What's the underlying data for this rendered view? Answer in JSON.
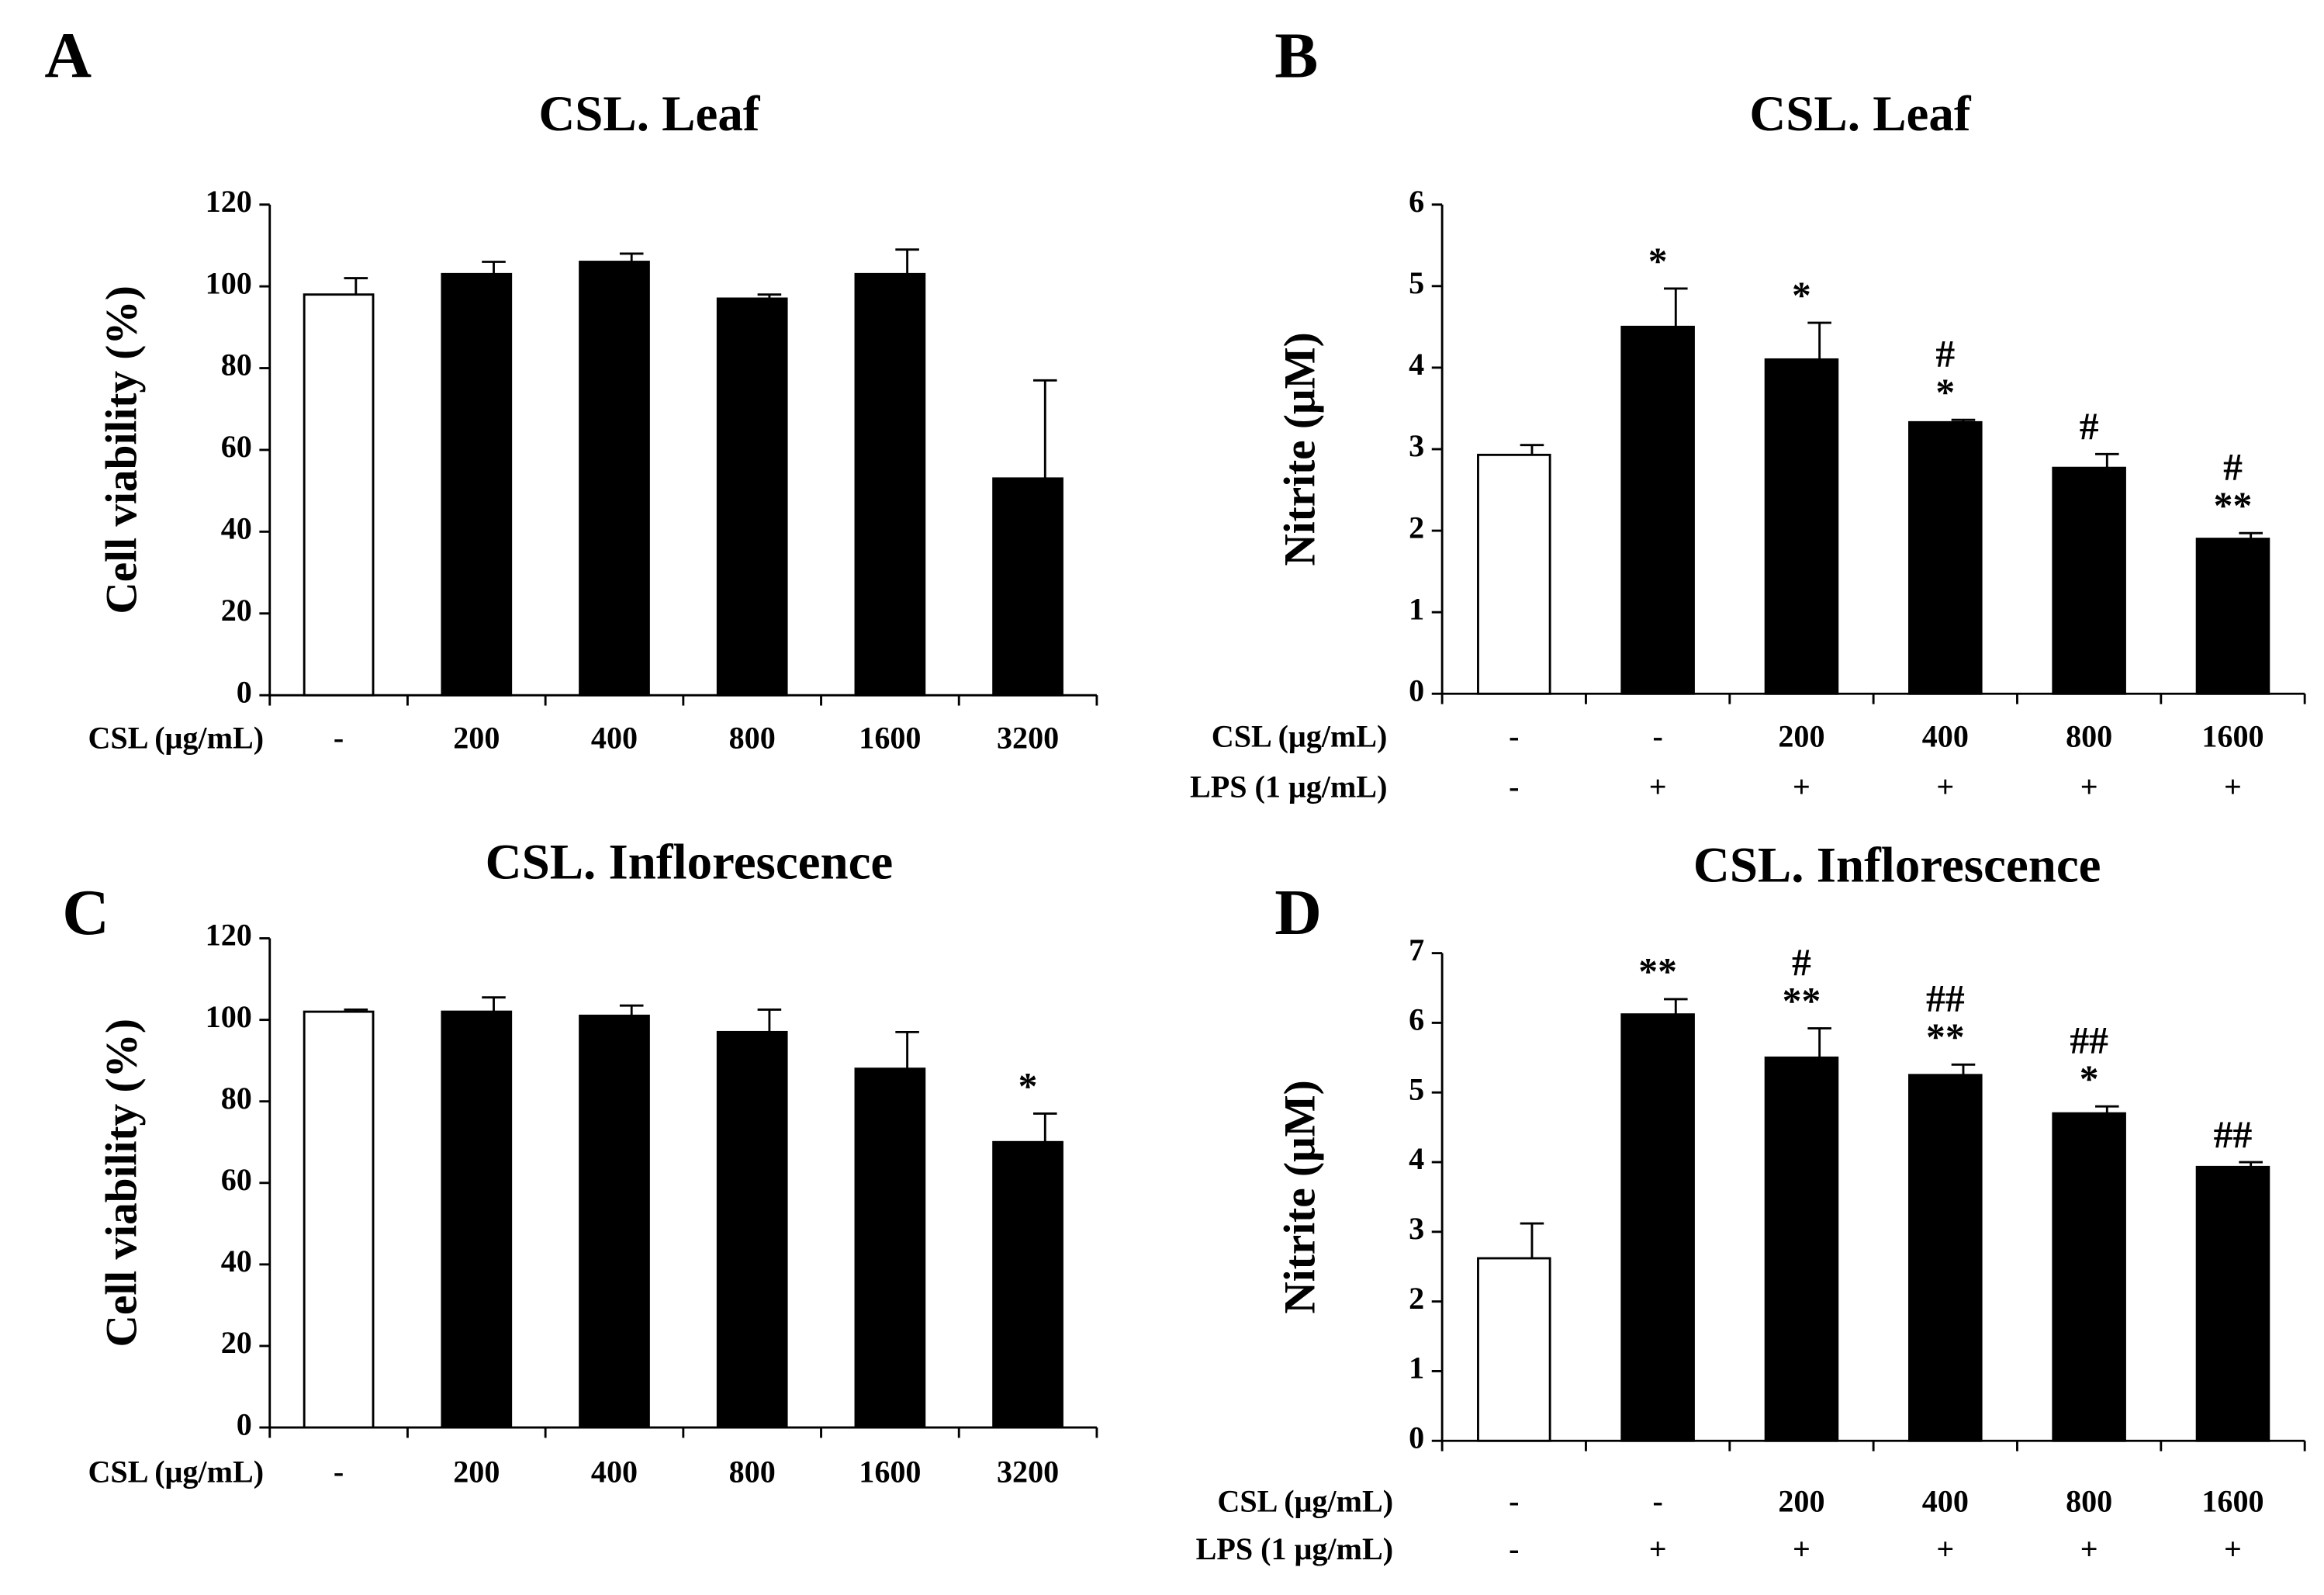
{
  "chart_data": [
    {
      "type": "bar",
      "panel": "A",
      "title": "CSL. Leaf",
      "ylabel": "Cell viability (%)",
      "ylim": [
        0,
        120
      ],
      "yticks": [
        0,
        20,
        40,
        60,
        80,
        100,
        120
      ],
      "rows": [
        {
          "label": "CSL (μg/mL)",
          "categories": [
            "-",
            "200",
            "400",
            "800",
            "1600",
            "3200"
          ]
        }
      ],
      "values": [
        98,
        103,
        106,
        97,
        103,
        53
      ],
      "errors": [
        4,
        3,
        2,
        1,
        6,
        24
      ],
      "colors": [
        "#ffffff",
        "#000000",
        "#000000",
        "#000000",
        "#000000",
        "#000000"
      ],
      "annotations": [
        null,
        null,
        null,
        null,
        null,
        null
      ]
    },
    {
      "type": "bar",
      "panel": "B",
      "title": "CSL. Leaf",
      "ylabel": "Nitrite (μM)",
      "ylim": [
        0,
        6
      ],
      "yticks": [
        0,
        1,
        2,
        3,
        4,
        5,
        6
      ],
      "rows": [
        {
          "label": "CSL (μg/mL)",
          "categories": [
            "-",
            "-",
            "200",
            "400",
            "800",
            "1600"
          ]
        },
        {
          "label": "LPS (1 μg/mL)",
          "categories": [
            "-",
            "+",
            "+",
            "+",
            "+",
            "+"
          ]
        }
      ],
      "values": [
        2.93,
        4.5,
        4.1,
        3.33,
        2.77,
        1.9
      ],
      "errors": [
        0.12,
        0.47,
        0.45,
        0.03,
        0.17,
        0.07
      ],
      "colors": [
        "#ffffff",
        "#000000",
        "#000000",
        "#000000",
        "#000000",
        "#000000"
      ],
      "annotations": [
        null,
        [
          "*"
        ],
        [
          "*"
        ],
        [
          "#",
          "*"
        ],
        [
          "#"
        ],
        [
          "#",
          "**"
        ]
      ]
    },
    {
      "type": "bar",
      "panel": "C",
      "title": "CSL. Inflorescence",
      "ylabel": "Cell viability (%)",
      "ylim": [
        0,
        120
      ],
      "yticks": [
        0,
        20,
        40,
        60,
        80,
        100,
        120
      ],
      "rows": [
        {
          "label": "CSL (μg/mL)",
          "categories": [
            "-",
            "200",
            "400",
            "800",
            "1600",
            "3200"
          ]
        }
      ],
      "values": [
        102,
        102,
        101,
        97,
        88,
        70
      ],
      "errors": [
        0.5,
        3.5,
        2.5,
        5.5,
        9,
        7
      ],
      "colors": [
        "#ffffff",
        "#000000",
        "#000000",
        "#000000",
        "#000000",
        "#000000"
      ],
      "annotations": [
        null,
        null,
        null,
        null,
        null,
        [
          "*"
        ]
      ]
    },
    {
      "type": "bar",
      "panel": "D",
      "title": "CSL. Inflorescence",
      "ylabel": "Nitrite (μM)",
      "ylim": [
        0,
        7
      ],
      "yticks": [
        0,
        1,
        2,
        3,
        4,
        5,
        6,
        7
      ],
      "rows": [
        {
          "label": "CSL (μg/mL)",
          "categories": [
            "-",
            "-",
            "200",
            "400",
            "800",
            "1600"
          ]
        },
        {
          "label": "LPS (1 μg/mL)",
          "categories": [
            "-",
            "+",
            "+",
            "+",
            "+",
            "+"
          ]
        }
      ],
      "values": [
        2.62,
        6.12,
        5.5,
        5.25,
        4.7,
        3.93
      ],
      "errors": [
        0.5,
        0.22,
        0.42,
        0.15,
        0.1,
        0.07
      ],
      "colors": [
        "#ffffff",
        "#000000",
        "#000000",
        "#000000",
        "#000000",
        "#000000"
      ],
      "annotations": [
        null,
        [
          "**"
        ],
        [
          "#",
          "**"
        ],
        [
          "##",
          "**"
        ],
        [
          "##",
          "*"
        ],
        [
          "##"
        ]
      ]
    }
  ]
}
